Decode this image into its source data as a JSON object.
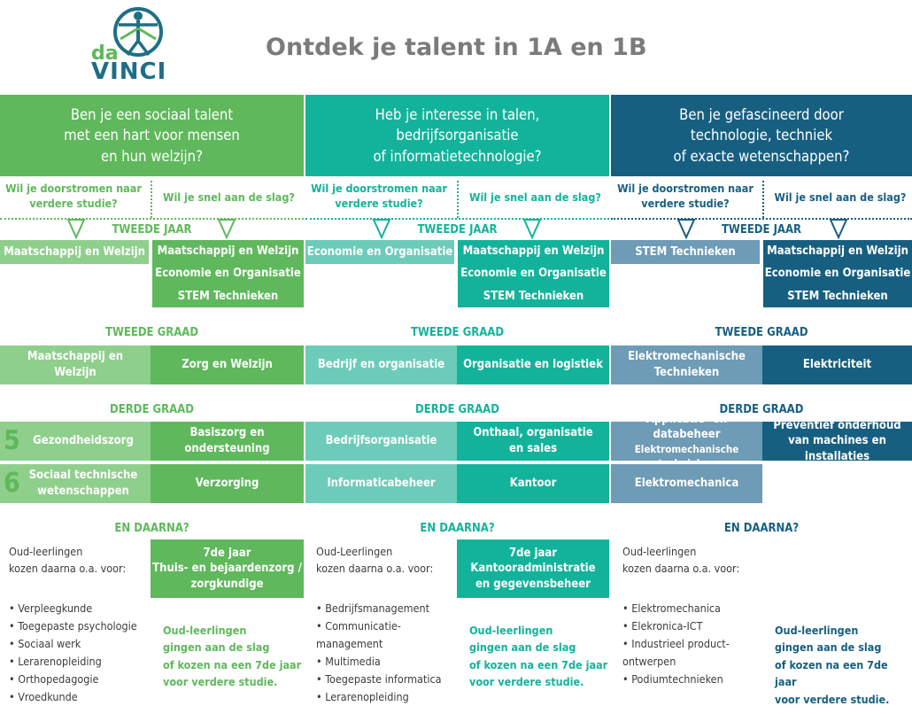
{
  "title": "Ontdek je talent in 1A en 1B",
  "logo": {
    "top": "da",
    "bottom": "VINCI"
  },
  "colors": {
    "green": "#5fb85c",
    "teal": "#13b39b",
    "blue": "#175f81"
  },
  "questions": {
    "doorstromen": "Wil je doorstromen naar verdere studie?",
    "snel": "Wil je snel aan de slag?"
  },
  "labels": {
    "tweede_jaar": "TWEEDE JAAR",
    "tweede_graad": "TWEEDE GRAAD",
    "derde_graad": "DERDE GRAAD",
    "en_daarna": "EN DAARNA?",
    "y5": "5",
    "y6": "6"
  },
  "columns": [
    {
      "header_lines": [
        "Ben je een sociaal talent",
        "met een hart voor mensen",
        "en hun welzijn?"
      ],
      "tj_left": "Maatschappij en Welzijn",
      "tj_right": [
        "Maatschappij en Welzijn",
        "Economie en Organisatie",
        "STEM Technieken"
      ],
      "tg_left": "Maatschappij en Welzijn",
      "tg_right": "Zorg en Welzijn",
      "dg5_left": "Gezondheidszorg",
      "dg5_right": "Basiszorg en ondersteuning",
      "dg6_left": "Sociaal technische wetenschappen",
      "dg6_right": "Verzorging",
      "oud_intro": [
        "Oud-leerlingen",
        "kozen daarna o.a. voor:"
      ],
      "seventh": [
        "7de jaar",
        "Thuis- en bejaardenzorg /",
        "zorgkundige"
      ],
      "list": [
        "Verpleegkunde",
        "Toegepaste psychologie",
        "Sociaal werk",
        "Lerarenopleiding",
        "Orthopedagogie",
        "Vroedkunde"
      ],
      "note": [
        "Oud-leerlingen",
        "gingen aan de slag",
        "of kozen na een 7de jaar",
        "voor verdere studie."
      ]
    },
    {
      "header_lines": [
        "Heb je interesse in talen,",
        "bedrijfsorganisatie",
        "of informatietechnologie?"
      ],
      "tj_left": "Economie en Organisatie",
      "tj_right": [
        "Maatschappij en Welzijn",
        "Economie en Organisatie",
        "STEM Technieken"
      ],
      "tg_left": "Bedrijf en organisatie",
      "tg_right": "Organisatie en logistiek",
      "dg5_left": "Bedrijfsorganisatie",
      "dg5_right": "Onthaal, organisatie en sales",
      "dg6_left": "Informaticabeheer",
      "dg6_right": "Kantoor",
      "oud_intro": [
        "Oud-Leerlingen",
        "kozen daarna o.a. voor:"
      ],
      "seventh": [
        "7de jaar",
        "Kantooradministratie",
        "en gegevensbeheer"
      ],
      "list": [
        "Bedrijfsmanagement",
        "Communicatie-management",
        "Multimedia",
        "Toegepaste informatica",
        "Lerarenopleiding"
      ],
      "note": [
        "Oud-leerlingen",
        "gingen aan de slag",
        "of kozen na een 7de jaar",
        "voor verdere studie."
      ]
    },
    {
      "header_lines": [
        "Ben je gefascineerd door",
        "technologie, techniek",
        "of exacte wetenschappen?"
      ],
      "tj_left": "STEM Technieken",
      "tj_right": [
        "Maatschappij en Welzijn",
        "Economie en Organisatie",
        "STEM Technieken"
      ],
      "tg_left": "Elektromechanische Technieken",
      "tg_right": "Elektriciteit",
      "dg5_left": "Applicatie- en databeheer",
      "dg5_left_sub": "Elektromechanische technieken",
      "dg5_right": "Preventief onderhoud van machines en installaties",
      "dg6_left": "Elektromechanica",
      "oud_intro": [
        "Oud-leerlingen",
        "kozen daarna o.a. voor:"
      ],
      "list": [
        "Elektromechanica",
        "Elekronica-ICT",
        "Industrieel product-ontwerpen",
        "Podiumtechnieken"
      ],
      "note": [
        "Oud-leerlingen",
        "gingen aan de slag",
        "of kozen na een 7de jaar",
        "voor verdere studie."
      ]
    }
  ]
}
